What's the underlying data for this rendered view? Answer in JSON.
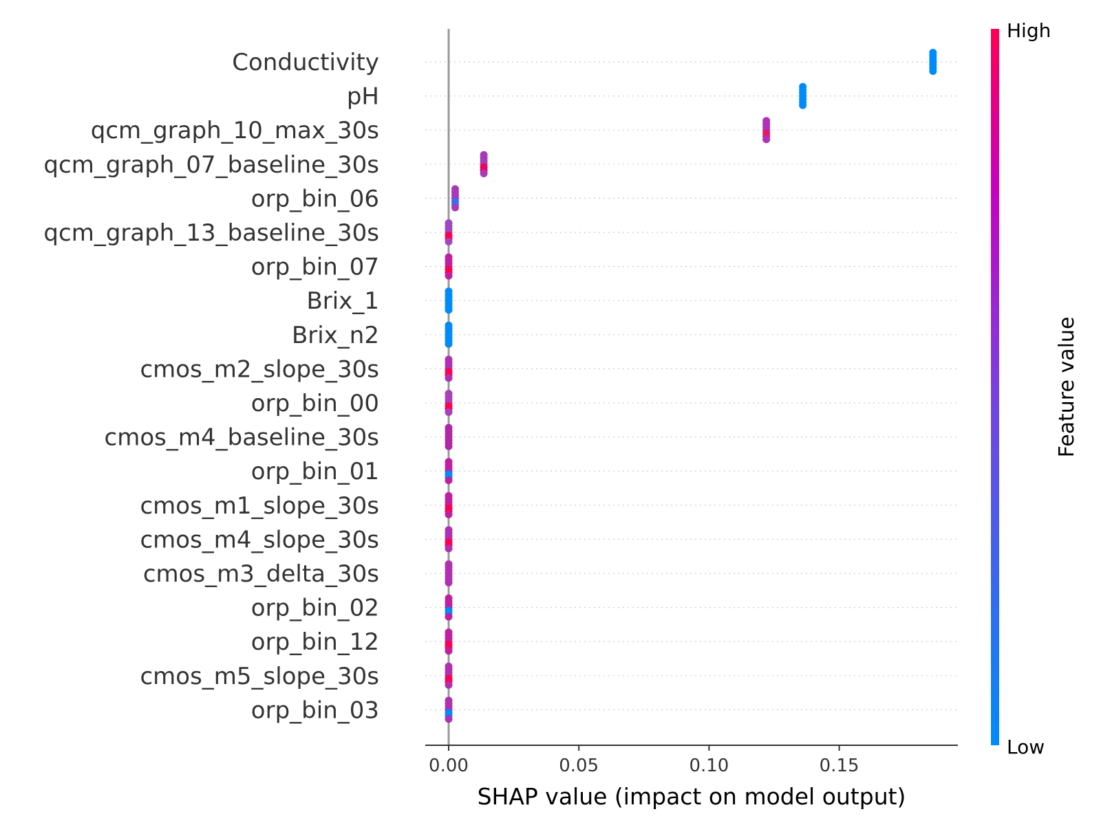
{
  "chart_data": {
    "type": "scatter",
    "subtype": "shap-beeswarm",
    "title": "",
    "xlabel": "SHAP value (impact on model output)",
    "xlim": [
      -0.01,
      0.195
    ],
    "xticks": [
      "0.00",
      "0.05",
      "0.10",
      "0.15"
    ],
    "xtick_values": [
      0.0,
      0.05,
      0.1,
      0.15
    ],
    "zero_line": true,
    "grid": "dotted horizontal per feature",
    "colorbar": {
      "title": "Feature value",
      "high_label": "High",
      "low_label": "Low",
      "high_color": "#ff0051",
      "mid_color": "#c800c0",
      "low_color": "#008bfb",
      "placement": "right"
    },
    "features": [
      {
        "name": "Conductivity",
        "shap": 0.186,
        "color": "#008bfb",
        "spread": 0
      },
      {
        "name": "pH",
        "shap": 0.136,
        "color": "#008bfb",
        "spread": 0
      },
      {
        "name": "qcm_graph_10_max_30s",
        "shap": 0.122,
        "color": "#b030b8",
        "accent": "#e0186e",
        "spread": 0
      },
      {
        "name": "qcm_graph_07_baseline_30s",
        "shap": 0.0135,
        "color": "#a83ab8",
        "accent": "#f00060",
        "spread": 0
      },
      {
        "name": "orp_bin_06",
        "shap": 0.0025,
        "color": "#a83ab8",
        "accent": "#3c6cf0",
        "spread": 0
      },
      {
        "name": "qcm_graph_13_baseline_30s",
        "shap": 0.0,
        "color": "#a048c0",
        "accent": "#ff0051",
        "spread": 0
      },
      {
        "name": "orp_bin_07",
        "shap": 0.0,
        "color": "#c020a0",
        "accent": "#ff0051",
        "spread": 0
      },
      {
        "name": "Brix_1",
        "shap": 0.0,
        "color": "#008bfb",
        "spread": 0
      },
      {
        "name": "Brix_n2",
        "shap": 0.0,
        "color": "#008bfb",
        "spread": 0
      },
      {
        "name": "cmos_m2_slope_30s",
        "shap": 0.0,
        "color": "#b030b0",
        "accent": "#ff0051",
        "spread": 0
      },
      {
        "name": "orp_bin_00",
        "shap": 0.0,
        "color": "#a840b8",
        "accent": "#ff0051",
        "spread": 0
      },
      {
        "name": "cmos_m4_baseline_30s",
        "shap": 0.0,
        "color": "#b028a8",
        "spread": 0
      },
      {
        "name": "orp_bin_01",
        "shap": 0.0,
        "color": "#c020a0",
        "accent": "#008bfb",
        "spread": 0
      },
      {
        "name": "cmos_m1_slope_30s",
        "shap": 0.0,
        "color": "#c020a0",
        "accent": "#ff0051",
        "spread": 0
      },
      {
        "name": "cmos_m4_slope_30s",
        "shap": 0.0,
        "color": "#b030b0",
        "accent": "#ff0051",
        "spread": 0
      },
      {
        "name": "cmos_m3_delta_30s",
        "shap": 0.0,
        "color": "#b030b0",
        "spread": 0
      },
      {
        "name": "orp_bin_02",
        "shap": 0.0,
        "color": "#c020a0",
        "accent": "#008bfb",
        "spread": 0
      },
      {
        "name": "orp_bin_12",
        "shap": 0.0,
        "color": "#c020a0",
        "accent": "#ff0051",
        "spread": 0
      },
      {
        "name": "cmos_m5_slope_30s",
        "shap": 0.0,
        "color": "#b030b0",
        "accent": "#ff0051",
        "spread": 0
      },
      {
        "name": "orp_bin_03",
        "shap": 0.0,
        "color": "#b030b0",
        "accent": "#008bfb",
        "spread": 0
      }
    ]
  }
}
